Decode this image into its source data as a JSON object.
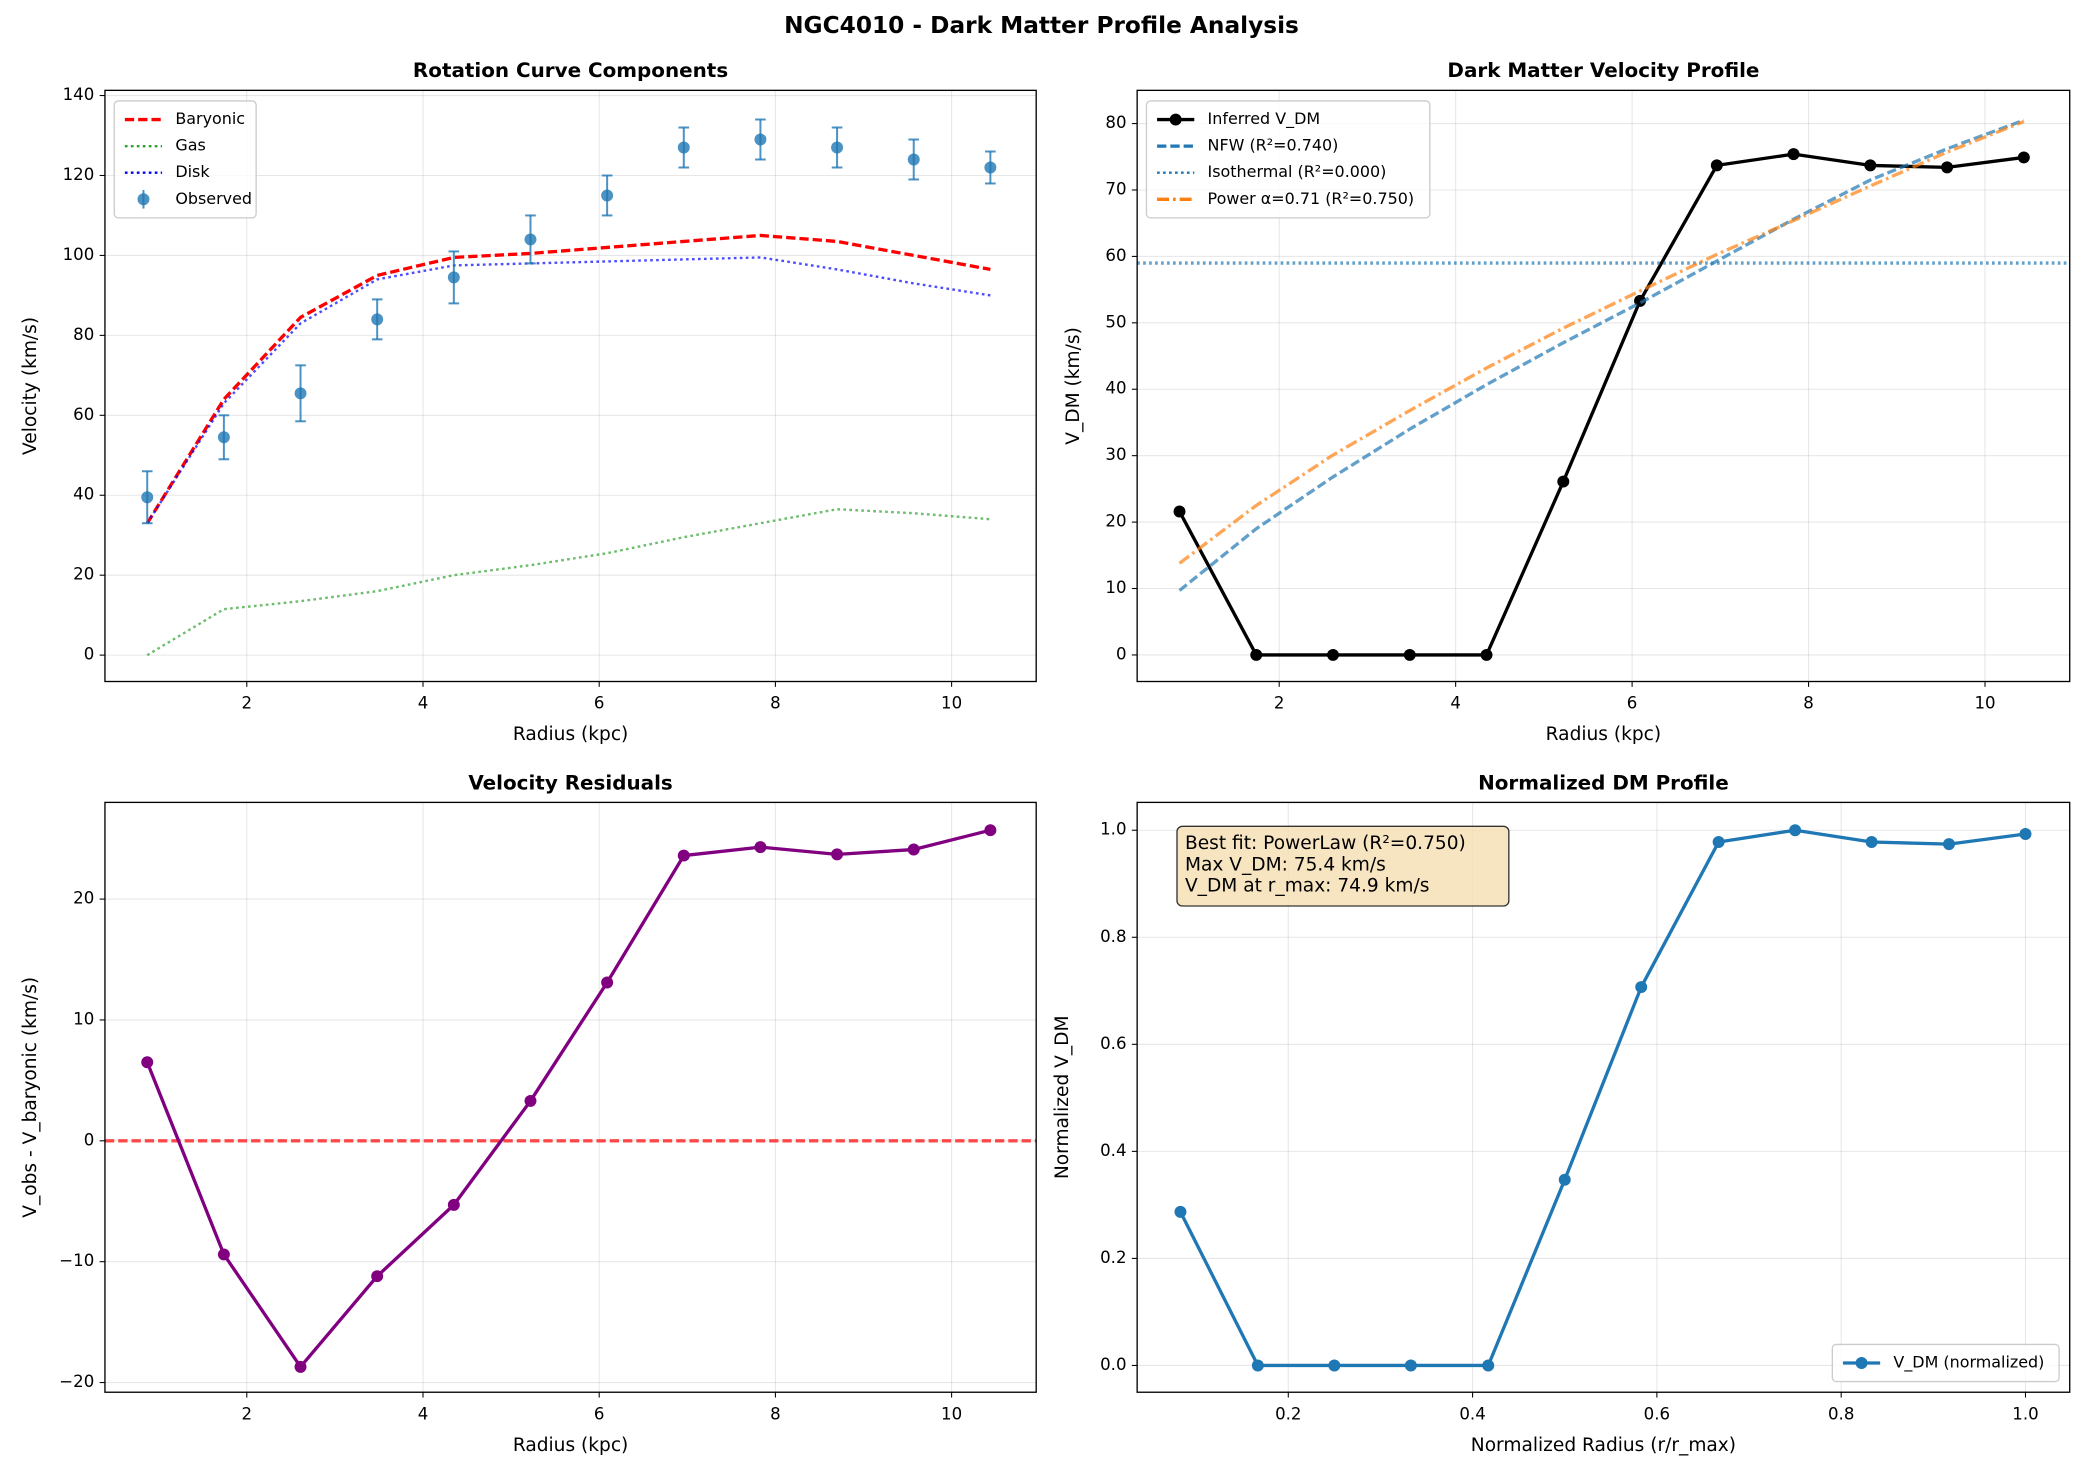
{
  "title": "NGC4010 - Dark Matter Profile Analysis",
  "chart_data": [
    {
      "type": "line",
      "title": "Rotation Curve Components",
      "xlabel": "Radius (kpc)",
      "ylabel": "Velocity (km/s)",
      "x": [
        0.87,
        1.74,
        2.61,
        3.48,
        4.35,
        5.22,
        6.09,
        6.96,
        7.83,
        8.7,
        9.57,
        10.44
      ],
      "xlim": [
        0.39,
        10.96
      ],
      "xticks": [
        2,
        4,
        6,
        8,
        10
      ],
      "ylim": [
        -6.6,
        141.3
      ],
      "yticks": [
        0,
        20,
        40,
        60,
        80,
        100,
        120,
        140
      ],
      "grid": true,
      "legend": "upper left",
      "series": [
        {
          "name": "Baryonic",
          "color": "#ff0000",
          "style": "dashed",
          "values": [
            33,
            64,
            84.5,
            95,
            99.5,
            100.5,
            102,
            103.5,
            105,
            103.5,
            100,
            96.5
          ]
        },
        {
          "name": "Gas",
          "color": "#2ca02c",
          "style": "dotted",
          "values": [
            0,
            11.5,
            13.5,
            16,
            20,
            22.5,
            25.5,
            29.5,
            33,
            36.5,
            35.5,
            34
          ]
        },
        {
          "name": "Disk",
          "color": "#0000ff",
          "style": "dotted",
          "values": [
            33,
            63,
            83,
            94,
            97.5,
            98,
            98.5,
            99,
            99.5,
            96.5,
            93,
            90
          ]
        },
        {
          "name": "Observed",
          "color": "#1f77b4",
          "style": "errorbar",
          "values": [
            39.5,
            54.5,
            65.5,
            84,
            94.5,
            104,
            115,
            127,
            129,
            127,
            124,
            122
          ],
          "errors": [
            6.5,
            5.5,
            7,
            5,
            6.5,
            6,
            5,
            5,
            5,
            5,
            5,
            4
          ]
        }
      ]
    },
    {
      "type": "line",
      "title": "Dark Matter Velocity Profile",
      "xlabel": "Radius (kpc)",
      "ylabel": "V_DM (km/s)",
      "x": [
        0.87,
        1.74,
        2.61,
        3.48,
        4.35,
        5.22,
        6.09,
        6.96,
        7.83,
        8.7,
        9.57,
        10.44
      ],
      "xlim": [
        0.39,
        10.96
      ],
      "xticks": [
        2,
        4,
        6,
        8,
        10
      ],
      "ylim": [
        -4,
        85
      ],
      "yticks": [
        0,
        10,
        20,
        30,
        40,
        50,
        60,
        70,
        80
      ],
      "grid": true,
      "legend": "upper left",
      "series": [
        {
          "name": "Inferred V_DM",
          "color": "#000000",
          "style": "markers",
          "values": [
            21.6,
            0,
            0,
            0,
            0,
            26.1,
            53.3,
            73.7,
            75.4,
            73.7,
            73.4,
            74.9
          ]
        },
        {
          "name": "NFW (R²=0.740)",
          "color": "#1f77b4",
          "style": "dashed",
          "values": [
            9.7,
            19.0,
            26.8,
            34.0,
            40.7,
            47.0,
            53.0,
            59.3,
            65.6,
            71.5,
            76.2,
            80.5
          ]
        },
        {
          "name": "Isothermal (R²=0.000)",
          "color": "#1f77b4",
          "style": "dotted",
          "y": 59
        },
        {
          "name": "Power α=0.71 (R²=0.750)",
          "color": "#ff7f0e",
          "style": "dashdot",
          "values": [
            13.8,
            22.5,
            30.1,
            36.8,
            43.2,
            49.2,
            54.8,
            60.3,
            65.4,
            70.6,
            75.7,
            80.3
          ]
        }
      ]
    },
    {
      "type": "line",
      "title": "Velocity Residuals",
      "xlabel": "Radius (kpc)",
      "ylabel": "V_obs - V_baryonic (km/s)",
      "x": [
        0.87,
        1.74,
        2.61,
        3.48,
        4.35,
        5.22,
        6.09,
        6.96,
        7.83,
        8.7,
        9.57,
        10.44
      ],
      "xlim": [
        0.39,
        10.96
      ],
      "xticks": [
        2,
        4,
        6,
        8,
        10
      ],
      "ylim": [
        -20.8,
        28
      ],
      "yticks": [
        {
          "value": -20,
          "label": "−20"
        },
        {
          "value": -10,
          "label": "−10"
        },
        0,
        10,
        20
      ],
      "grid": true,
      "reference_line": {
        "y": 0,
        "color": "#ff0000"
      },
      "series": [
        {
          "color": "#800080",
          "style": "markers",
          "values": [
            6.5,
            -9.4,
            -18.7,
            -11.2,
            -5.3,
            3.3,
            13.1,
            23.6,
            24.3,
            23.7,
            24.1,
            25.7
          ]
        }
      ]
    },
    {
      "type": "line",
      "title": "Normalized DM Profile",
      "xlabel": "Normalized Radius (r/r_max)",
      "ylabel": "Normalized V_DM",
      "x": [
        0.083,
        0.167,
        0.25,
        0.333,
        0.417,
        0.5,
        0.583,
        0.667,
        0.75,
        0.833,
        0.917,
        {
          "value": 1.0,
          "label": "1.0"
        }
      ],
      "xlim": [
        0.036,
        1.048
      ],
      "xticks": [
        0.2,
        0.4,
        0.6,
        0.8,
        {
          "value": 1.0,
          "label": "1.0"
        }
      ],
      "ylim": [
        -0.05,
        1.052
      ],
      "yticks": [
        {
          "value": 0.0,
          "label": "0.0"
        },
        0.2,
        0.4,
        0.6,
        0.8,
        {
          "value": 1.0,
          "label": "1.0"
        }
      ],
      "grid": true,
      "legend": "lower right",
      "annotation": [
        "Best fit: PowerLaw (R²=0.750)",
        "Max V_DM: 75.4 km/s",
        "V_DM at r_max: 74.9 km/s"
      ],
      "series": [
        {
          "name": "V_DM (normalized)",
          "color": "#1f77b4",
          "style": "markers",
          "values": [
            0.287,
            0,
            0,
            0,
            0,
            0.347,
            0.707,
            0.978,
            1.0,
            0.978,
            0.974,
            0.993
          ]
        }
      ]
    }
  ]
}
